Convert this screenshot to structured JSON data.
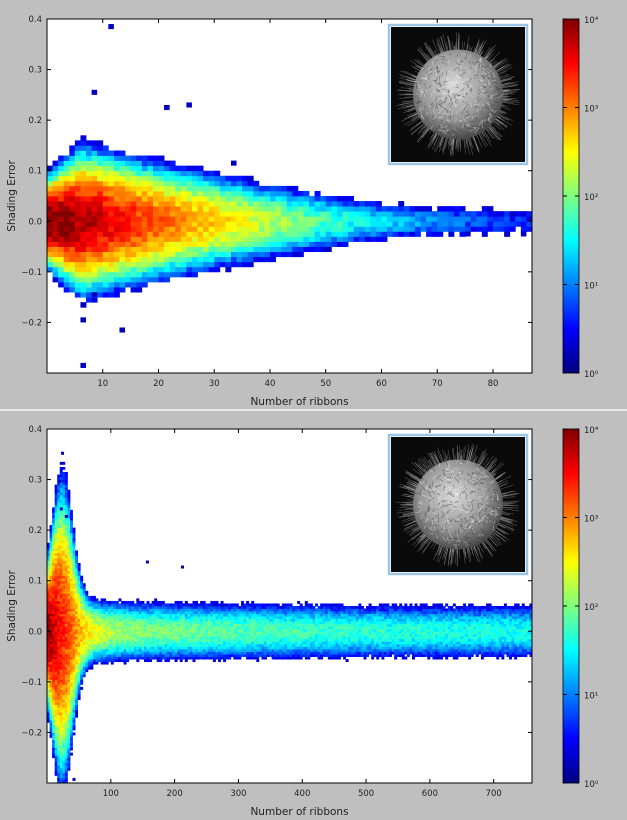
{
  "chart_data": [
    {
      "type": "heatmap",
      "xlabel": "Number of ribbons",
      "ylabel": "Shading Error",
      "xlim": [
        0,
        87
      ],
      "ylim": [
        -0.3,
        0.4
      ],
      "xticks": [
        10,
        20,
        30,
        40,
        50,
        60,
        70,
        80
      ],
      "yticks": [
        -0.2,
        -0.1,
        0.0,
        0.1,
        0.2,
        0.3,
        0.4
      ],
      "ytick_labels": [
        "−0.2",
        "−0.1",
        "0.0",
        "0.1",
        "0.2",
        "0.3",
        "0.4"
      ],
      "grid": false,
      "color_scale": "log",
      "colorbar": {
        "min": 1,
        "max": 10000,
        "ticks": [
          "10⁰",
          "10¹",
          "10²",
          "10³",
          "10⁴"
        ]
      },
      "inset": "rendered-fur-sphere",
      "outliers": [
        [
          11,
          0.39
        ],
        [
          8,
          0.26
        ],
        [
          25,
          0.235
        ],
        [
          21,
          0.23
        ],
        [
          6,
          -0.28
        ],
        [
          6,
          -0.19
        ],
        [
          13,
          -0.21
        ],
        [
          8,
          -0.14
        ],
        [
          33,
          0.12
        ],
        [
          85,
          -0.02
        ],
        [
          75,
          -0.02
        ]
      ]
    },
    {
      "type": "heatmap",
      "xlabel": "Number of ribbons",
      "ylabel": "Shading Error",
      "xlim": [
        0,
        760
      ],
      "ylim": [
        -0.3,
        0.4
      ],
      "xticks": [
        100,
        200,
        300,
        400,
        500,
        600,
        700
      ],
      "yticks": [
        -0.2,
        -0.1,
        0.0,
        0.1,
        0.2,
        0.3,
        0.4
      ],
      "ytick_labels": [
        "−0.2",
        "−0.1",
        "0.0",
        "0.1",
        "0.2",
        "0.3",
        "0.4"
      ],
      "grid": false,
      "color_scale": "log",
      "colorbar": {
        "min": 1,
        "max": 10000,
        "ticks": [
          "10⁰",
          "10¹",
          "10²",
          "10³",
          "10⁴"
        ]
      },
      "inset": "rendered-fur-sphere",
      "outliers": [
        [
          22,
          0.355
        ],
        [
          18,
          0.3
        ],
        [
          40,
          -0.29
        ],
        [
          155,
          0.14
        ],
        [
          210,
          0.13
        ],
        [
          20,
          0.245
        ],
        [
          28,
          0.23
        ]
      ]
    }
  ],
  "colors": {
    "figure_background": "#bfbfbf",
    "plot_background": "#ffffff",
    "colormap": [
      "#00007f",
      "#0000ff",
      "#007fff",
      "#00ffff",
      "#7fff7f",
      "#ffff00",
      "#ff7f00",
      "#ff0000",
      "#7f0000"
    ],
    "inset_frame": "#9cc4e4"
  }
}
